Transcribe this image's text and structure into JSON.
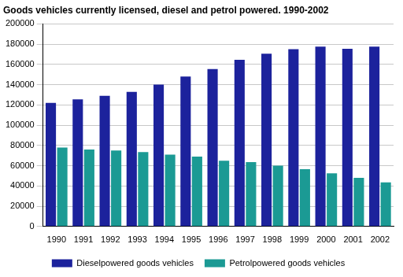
{
  "chart_data": {
    "type": "bar",
    "title": "Goods vehicles currently licensed, diesel and petrol powered. 1990-2002",
    "categories": [
      "1990",
      "1991",
      "1992",
      "1993",
      "1994",
      "1995",
      "1996",
      "1997",
      "1998",
      "1999",
      "2000",
      "2001",
      "2002"
    ],
    "series": [
      {
        "name": "Dieselpowered goods vehicles",
        "color": "#1c229c",
        "values": [
          122000,
          125500,
          129000,
          133000,
          140000,
          148000,
          155500,
          164500,
          170500,
          175000,
          177500,
          175500,
          177500
        ]
      },
      {
        "name": "Petrolpowered goods vehicles",
        "color": "#1b9a94",
        "values": [
          78000,
          76000,
          75000,
          73500,
          71000,
          69000,
          65000,
          63500,
          60000,
          56500,
          52500,
          48000,
          43500
        ]
      }
    ],
    "ylim": [
      0,
      200000
    ],
    "yticks": [
      0,
      20000,
      40000,
      60000,
      80000,
      100000,
      120000,
      140000,
      160000,
      180000,
      200000
    ],
    "grid": true,
    "legend": "bottom"
  }
}
